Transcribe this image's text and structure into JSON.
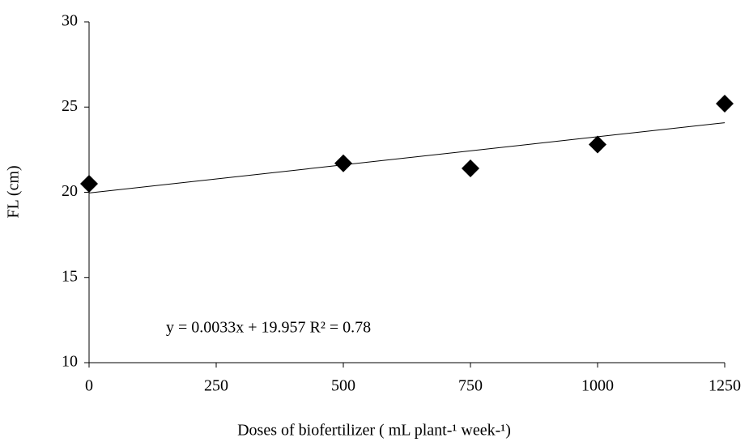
{
  "chart_data": {
    "type": "scatter",
    "x_label": "Doses of biofertilizer ( mL plant-¹ week-¹)",
    "y_label": "FL (cm)",
    "annotation": "y = 0.0033x + 19.957  R² = 0.78",
    "x": [
      0,
      500,
      750,
      1000,
      1250
    ],
    "values": [
      20.5,
      21.7,
      21.4,
      22.8,
      25.2
    ],
    "color": "#000000",
    "trendline": {
      "slope": 0.0033,
      "intercept": 19.957
    },
    "xlim": [
      0,
      1250
    ],
    "xticks": [
      0,
      250,
      500,
      750,
      1000,
      1250
    ],
    "ylim": [
      10,
      30
    ],
    "yticks": [
      10,
      15,
      20,
      25,
      30
    ],
    "grid": false
  }
}
